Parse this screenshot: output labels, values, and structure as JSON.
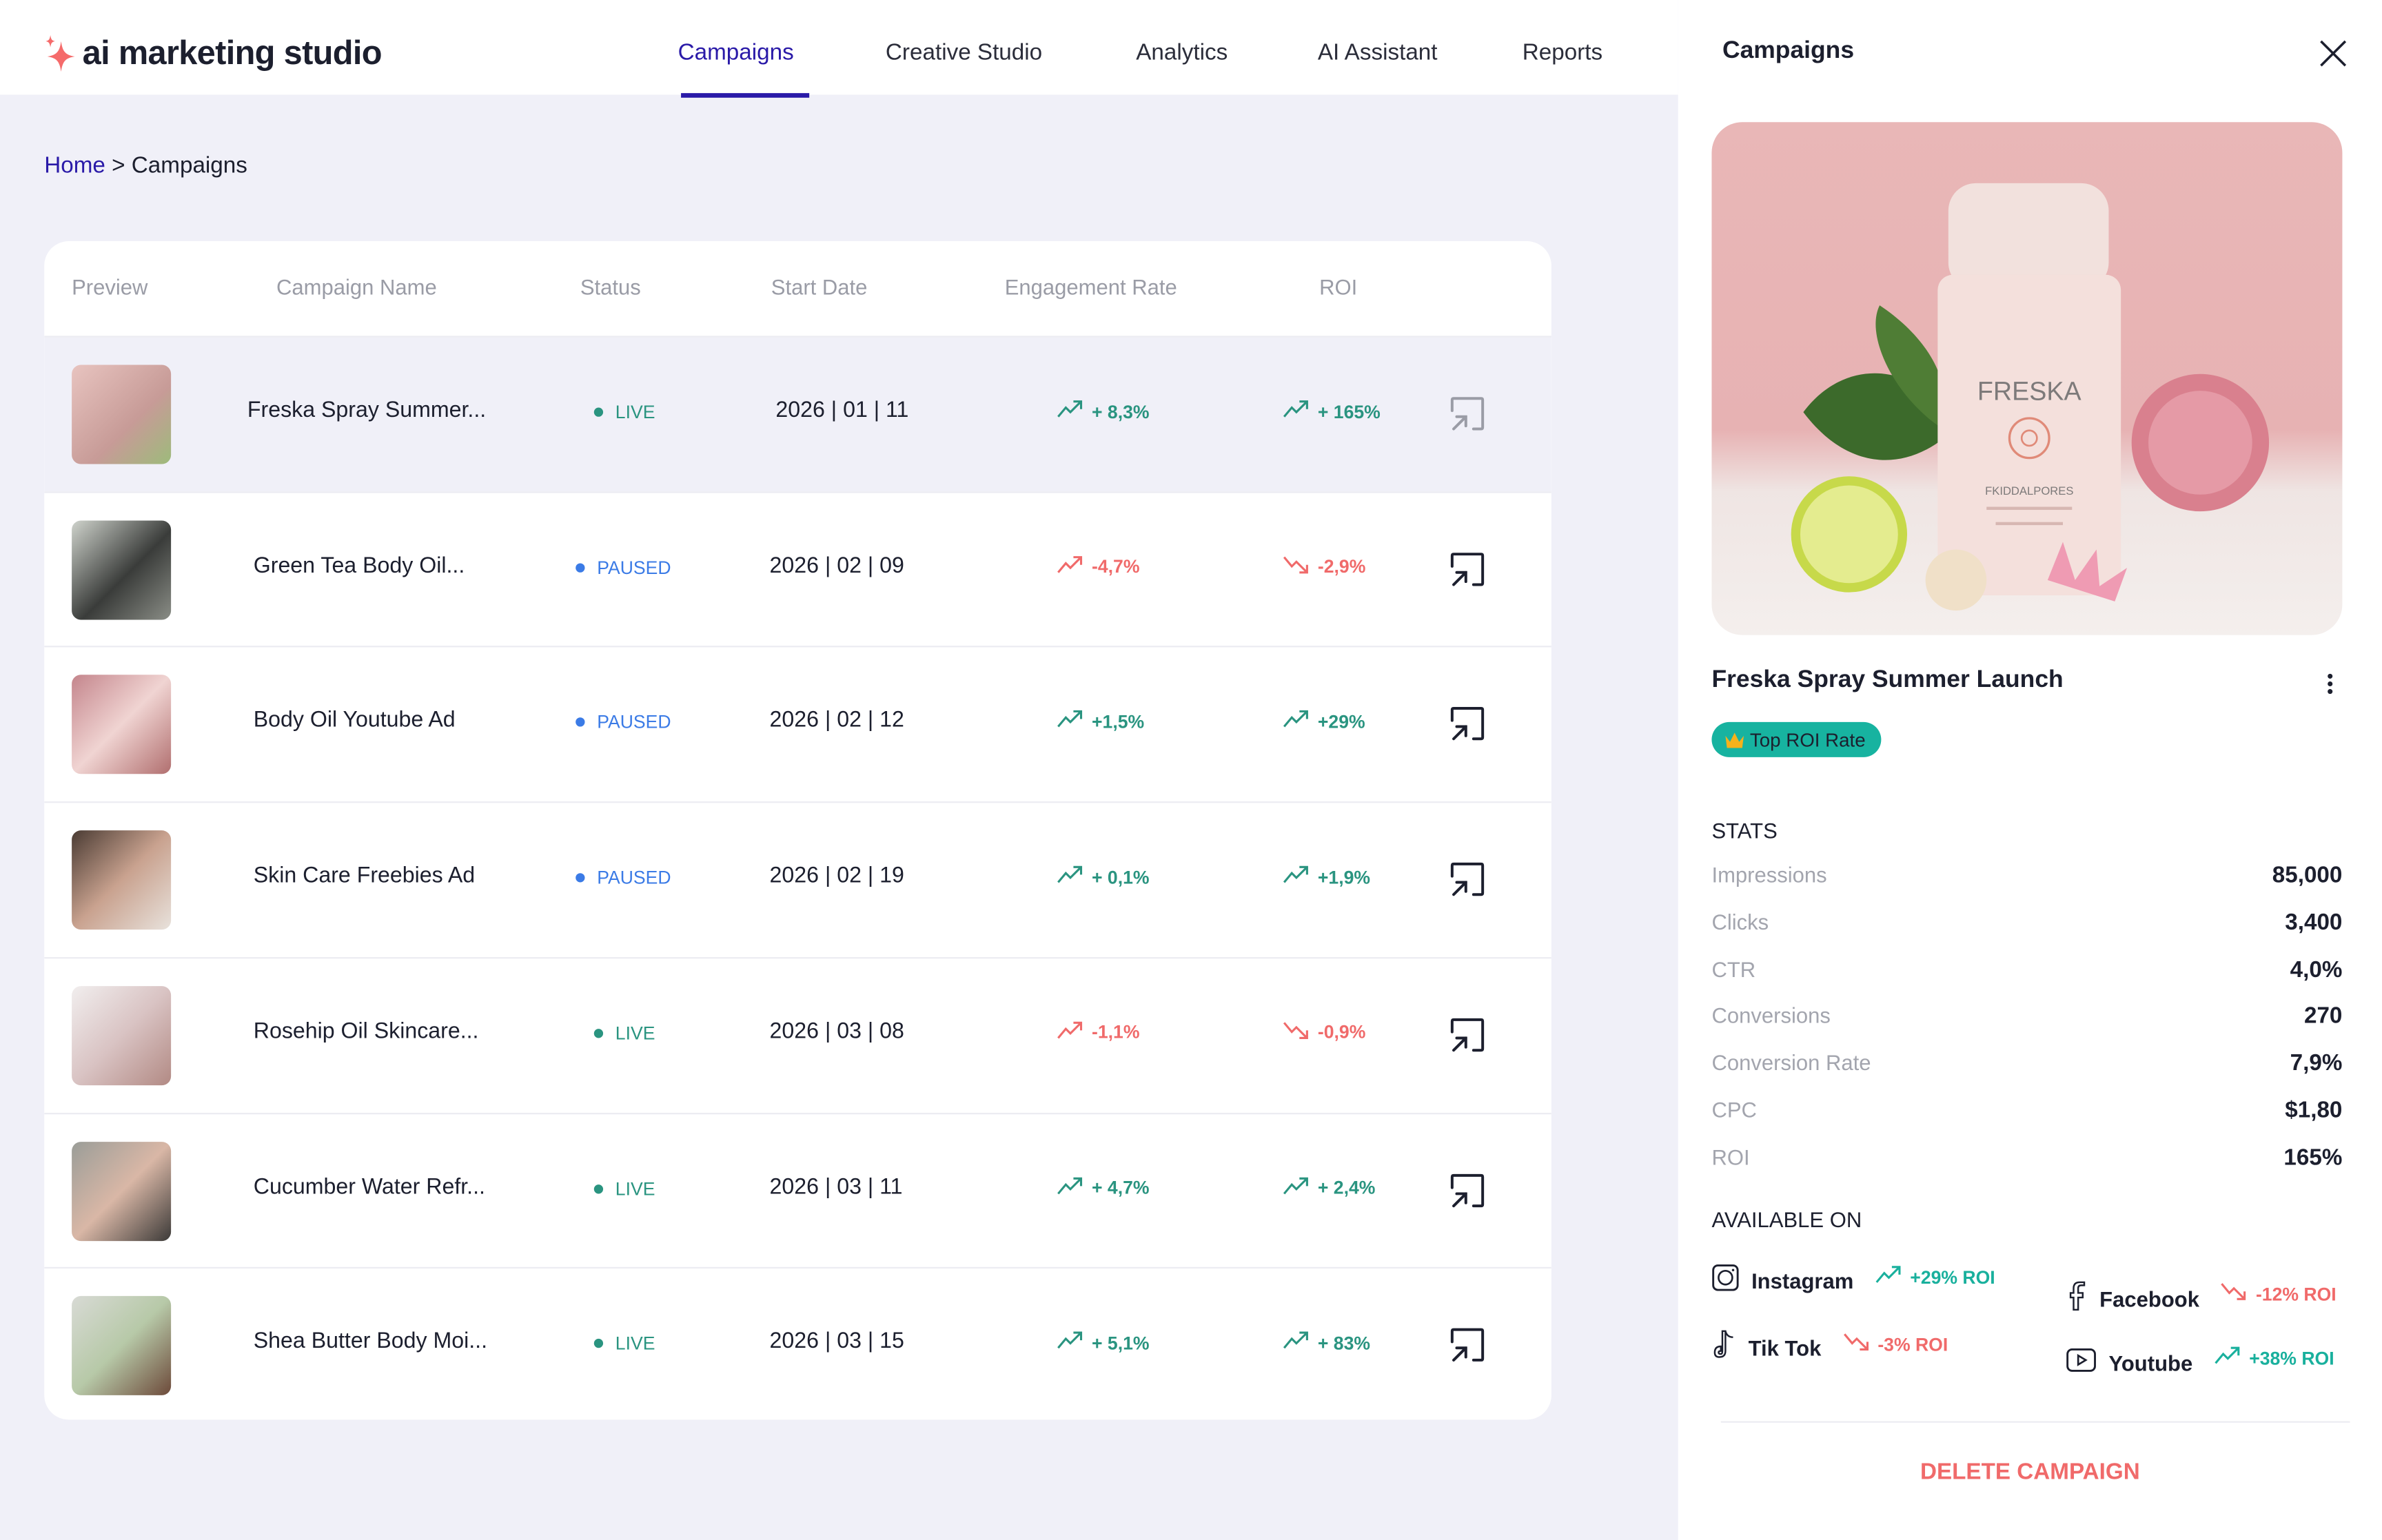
{
  "app": {
    "name": "ai marketing studio"
  },
  "nav": [
    {
      "label": "Campaigns",
      "active": true
    },
    {
      "label": "Creative Studio"
    },
    {
      "label": "Analytics"
    },
    {
      "label": "AI Assistant"
    },
    {
      "label": "Reports"
    }
  ],
  "breadcrumb": {
    "home": "Home",
    "sep": ">",
    "current": "Campaigns"
  },
  "table": {
    "headers": [
      "Preview",
      "Campaign Name",
      "Status",
      "Start Date",
      "Engagement Rate",
      "ROI"
    ],
    "rows": [
      {
        "name": "Freska Spray Summer...",
        "status": "LIVE",
        "date": "2026 | 01 | 11",
        "eng": "+ 8,3%",
        "eng_trend": "up",
        "eng_good": true,
        "roi": "+ 165%",
        "roi_trend": "up",
        "roi_good": true,
        "selected": true
      },
      {
        "name": "Green Tea Body Oil...",
        "status": "PAUSED",
        "date": "2026 | 02 | 09",
        "eng": "-4,7%",
        "eng_trend": "up",
        "eng_good": false,
        "roi": "-2,9%",
        "roi_trend": "down",
        "roi_good": false
      },
      {
        "name": "Body Oil Youtube Ad",
        "status": "PAUSED",
        "date": "2026 | 02 | 12",
        "eng": "+1,5%",
        "eng_trend": "up",
        "eng_good": true,
        "roi": "+29%",
        "roi_trend": "up",
        "roi_good": true
      },
      {
        "name": "Skin Care Freebies Ad",
        "status": "PAUSED",
        "date": "2026 | 02 | 19",
        "eng": "+ 0,1%",
        "eng_trend": "up",
        "eng_good": true,
        "roi": "+1,9%",
        "roi_trend": "up",
        "roi_good": true
      },
      {
        "name": "Rosehip Oil Skincare...",
        "status": "LIVE",
        "date": "2026 | 03 | 08",
        "eng": "-1,1%",
        "eng_trend": "up",
        "eng_good": false,
        "roi": "-0,9%",
        "roi_trend": "down",
        "roi_good": false
      },
      {
        "name": "Cucumber Water Refr...",
        "status": "LIVE",
        "date": "2026 | 03 | 11",
        "eng": "+ 4,7%",
        "eng_trend": "up",
        "eng_good": true,
        "roi": "+ 2,4%",
        "roi_trend": "up",
        "roi_good": true
      },
      {
        "name": "Shea Butter Body Moi...",
        "status": "LIVE",
        "date": "2026 | 03 | 15",
        "eng": "+ 5,1%",
        "eng_trend": "up",
        "eng_good": true,
        "roi": "+ 83%",
        "roi_trend": "up",
        "roi_good": true
      }
    ]
  },
  "panel": {
    "title": "Campaigns",
    "image_label": "FRESKA",
    "image_sublabel": "FKIDDALPORES",
    "campaign_name": "Freska Spray Summer Launch",
    "badge": "Top ROI Rate",
    "stats_title": "STATS",
    "stats": [
      {
        "label": "Impressions",
        "value": "85,000"
      },
      {
        "label": "Clicks",
        "value": "3,400"
      },
      {
        "label": "CTR",
        "value": "4,0%"
      },
      {
        "label": "Conversions",
        "value": "270"
      },
      {
        "label": "Conversion Rate",
        "value": "7,9%"
      },
      {
        "label": "CPC",
        "value": "$1,80"
      },
      {
        "label": "ROI",
        "value": "165%"
      }
    ],
    "available_title": "AVAILABLE ON",
    "platforms": [
      {
        "name": "Instagram",
        "roi": "+29% ROI",
        "trend": "up"
      },
      {
        "name": "Facebook",
        "roi": "-12% ROI",
        "trend": "down"
      },
      {
        "name": "Tik Tok",
        "roi": "-3% ROI",
        "trend": "down"
      },
      {
        "name": "Youtube",
        "roi": "+38% ROI",
        "trend": "up"
      }
    ],
    "delete_label": "DELETE CAMPAIGN"
  },
  "colors": {
    "accent": "#2a1aa8",
    "positive": "#2a9480",
    "negative": "#f06a6a",
    "badge": "#17b3a0",
    "live": "#2a9480",
    "paused": "#3b7be6"
  }
}
